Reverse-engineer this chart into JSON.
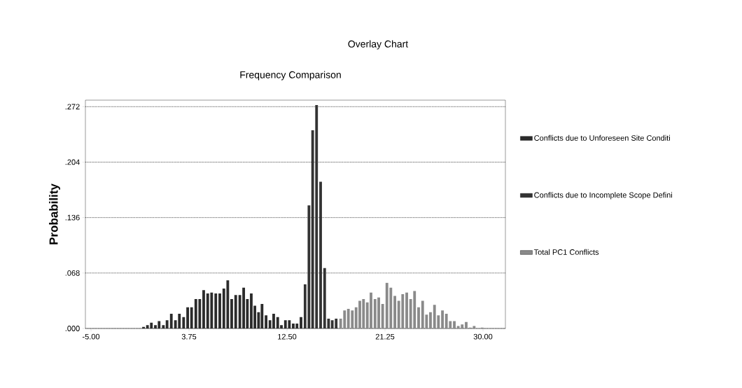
{
  "chart_data": {
    "type": "bar",
    "title": "Overlay Chart",
    "subtitle": "Frequency Comparison",
    "ylabel": "Probability",
    "xlim": [
      -5.5,
      32
    ],
    "ylim": [
      0,
      0.28
    ],
    "xticks": [
      {
        "value": -5,
        "label": "-5.00"
      },
      {
        "value": 3.75,
        "label": "3.75"
      },
      {
        "value": 12.5,
        "label": "12.50"
      },
      {
        "value": 21.25,
        "label": "21.25"
      },
      {
        "value": 30,
        "label": "30.00"
      }
    ],
    "yticks": [
      {
        "value": 0,
        "label": ".000"
      },
      {
        "value": 0.068,
        "label": ".068"
      },
      {
        "value": 0.136,
        "label": ".136"
      },
      {
        "value": 0.204,
        "label": ".204"
      },
      {
        "value": 0.272,
        "label": ".272"
      }
    ],
    "grid": "y",
    "line_style": "dotted",
    "legend": "right",
    "series": [
      {
        "name": "Conflicts due to Unforeseen Site Conditi",
        "color": "#2b2b2b",
        "x": [
          -0.31,
          0.04,
          0.39,
          0.75,
          1.08,
          1.46,
          1.79,
          2.17,
          2.54,
          2.89,
          3.27,
          3.63,
          3.98,
          4.36,
          4.71,
          5.06,
          5.42,
          5.77,
          6.14,
          6.5,
          6.86,
          7.21,
          7.56,
          7.92,
          8.29,
          8.63,
          8.96,
          9.31,
          9.63,
          9.96,
          10.27,
          10.63,
          10.98,
          11.31,
          11.67,
          12.0,
          12.36,
          12.71,
          13.06,
          13.39,
          13.75
        ],
        "values": [
          0.002,
          0.004,
          0.007,
          0.004,
          0.009,
          0.004,
          0.01,
          0.018,
          0.01,
          0.018,
          0.014,
          0.026,
          0.026,
          0.036,
          0.036,
          0.047,
          0.043,
          0.044,
          0.043,
          0.043,
          0.049,
          0.059,
          0.036,
          0.041,
          0.041,
          0.05,
          0.036,
          0.043,
          0.028,
          0.02,
          0.03,
          0.016,
          0.01,
          0.018,
          0.014,
          0.004,
          0.01,
          0.01,
          0.006,
          0.006,
          0.014
        ]
      },
      {
        "name": "Conflicts due to Incomplete Scope Defini",
        "color": "#333333",
        "x": [
          14.11,
          14.46,
          14.79,
          15.14,
          15.5,
          15.86,
          16.21,
          16.54,
          16.89
        ],
        "values": [
          0.054,
          0.151,
          0.243,
          0.274,
          0.18,
          0.074,
          0.012,
          0.01,
          0.012
        ]
      },
      {
        "name": "Total PC1 Conflicts",
        "color": "#8a8a8a",
        "x": [
          17.29,
          17.64,
          17.98,
          18.33,
          18.67,
          19.0,
          19.33,
          19.67,
          20.0,
          20.36,
          20.69,
          21.04,
          21.42,
          21.77,
          22.13,
          22.48,
          22.83,
          23.19,
          23.54,
          23.89,
          24.25,
          24.61,
          24.96,
          25.31,
          25.67,
          26.02,
          26.38,
          26.73,
          27.08,
          27.44,
          27.79,
          28.14,
          28.5,
          28.86,
          29.21,
          29.92
        ],
        "values": [
          0.012,
          0.022,
          0.024,
          0.022,
          0.026,
          0.034,
          0.036,
          0.032,
          0.044,
          0.036,
          0.038,
          0.03,
          0.056,
          0.05,
          0.04,
          0.034,
          0.042,
          0.044,
          0.036,
          0.046,
          0.026,
          0.034,
          0.017,
          0.02,
          0.029,
          0.016,
          0.022,
          0.018,
          0.009,
          0.009,
          0.003,
          0.005,
          0.008,
          0.001,
          0.003,
          0.001
        ]
      }
    ]
  }
}
